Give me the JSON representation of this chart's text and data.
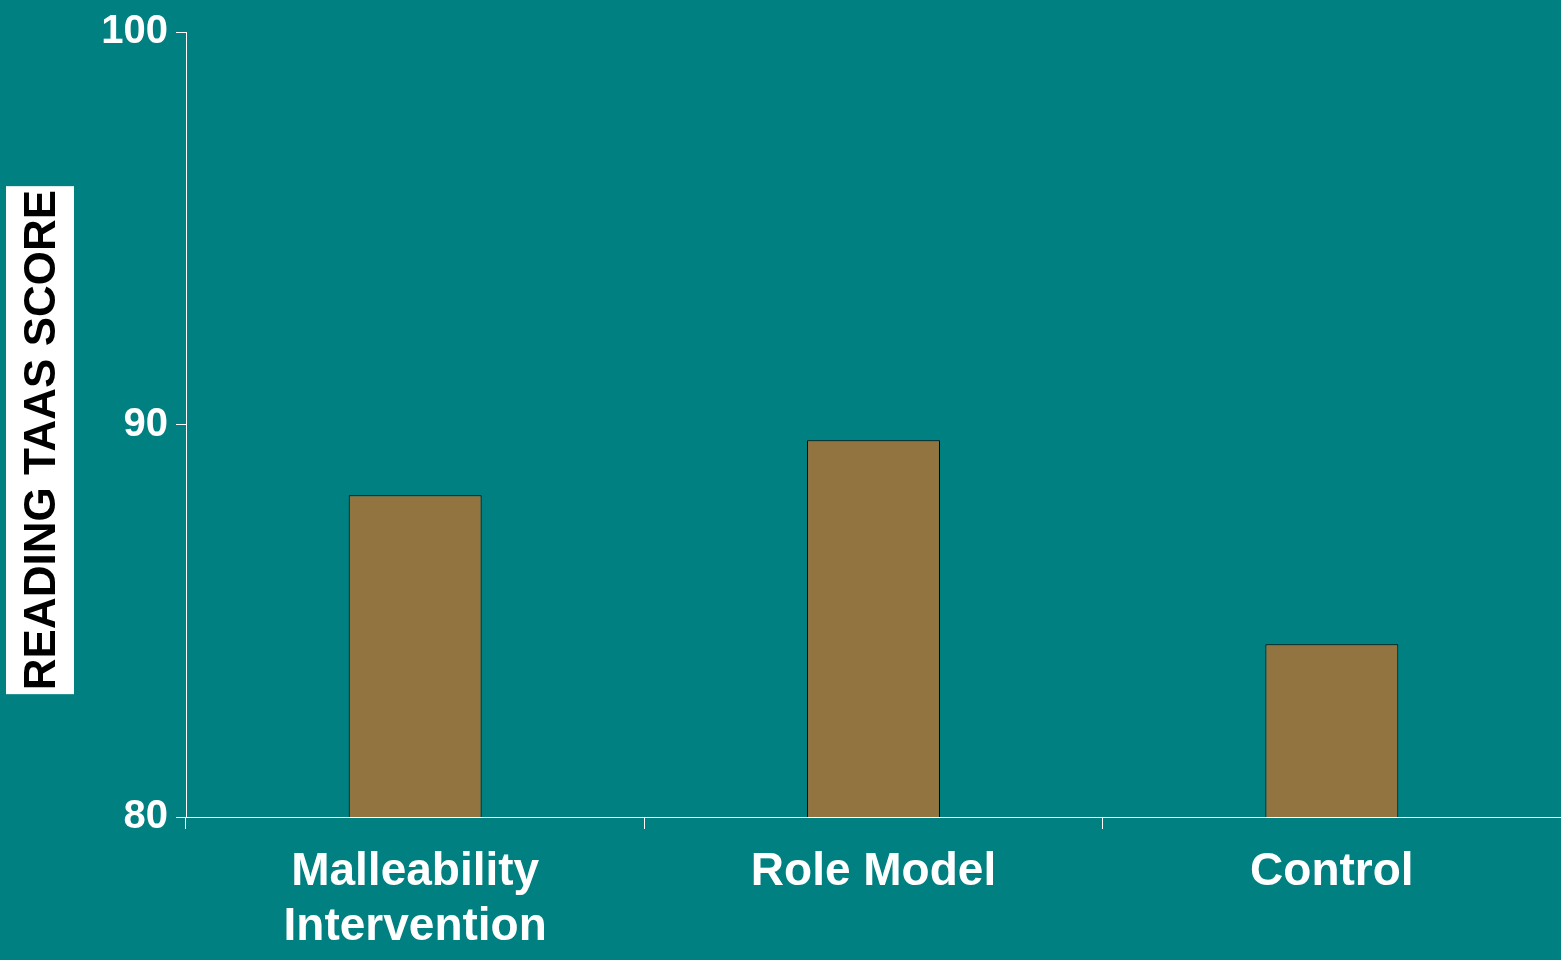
{
  "chart_data": {
    "type": "bar",
    "ylabel": "READING TAAS SCORE",
    "categories": [
      "Malleability Intervention",
      "Role Model",
      "Control"
    ],
    "values": [
      88.2,
      89.6,
      84.4
    ],
    "color": "#927440",
    "ylim": [
      80,
      100
    ],
    "yticks": [
      80,
      90,
      100
    ],
    "legend": false
  }
}
